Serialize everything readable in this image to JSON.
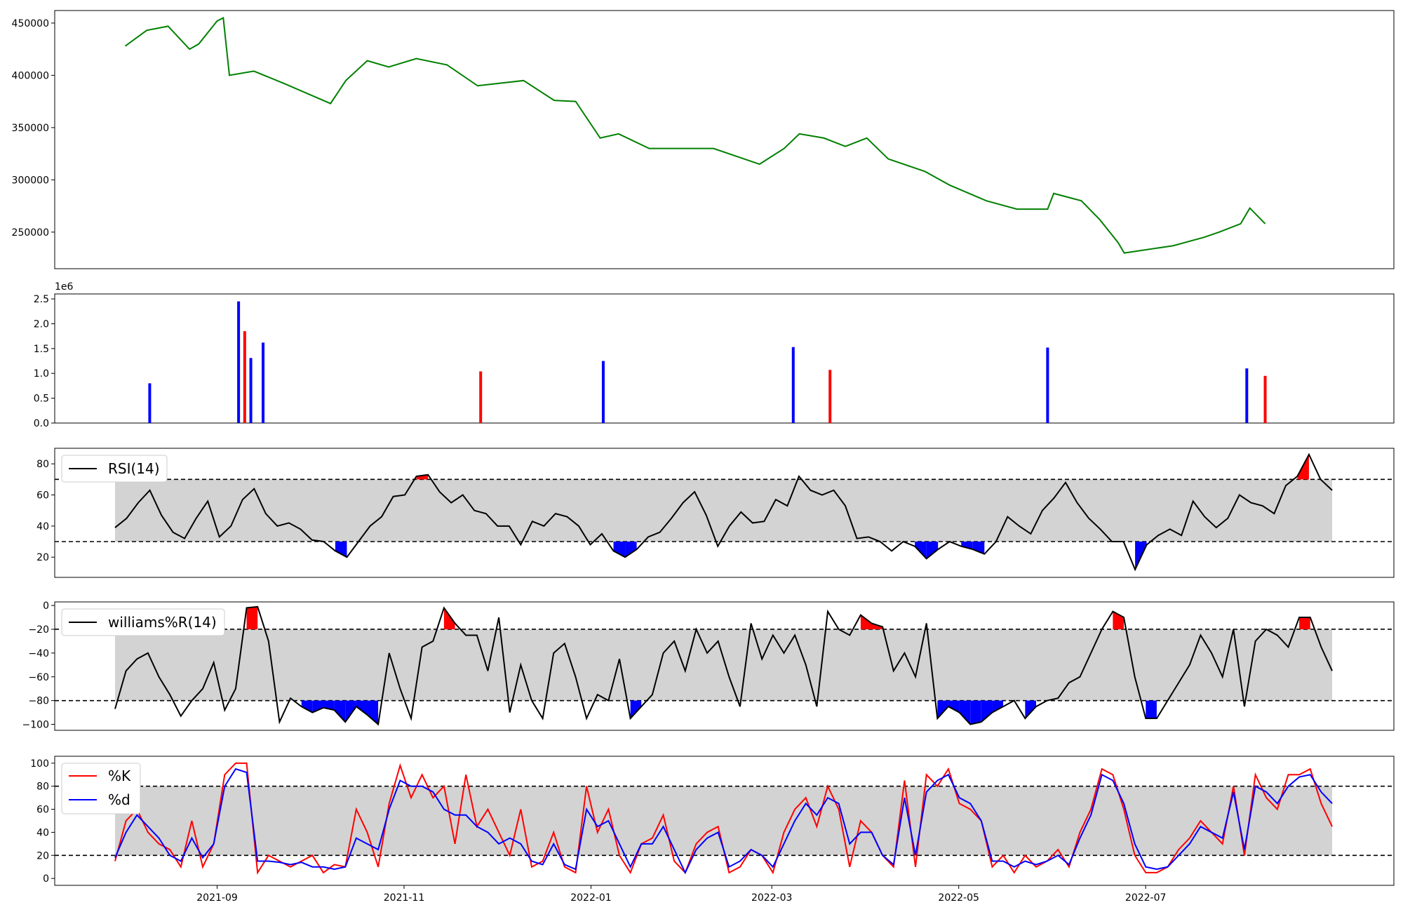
{
  "figure": {
    "x_ticks": [
      "2021-09",
      "2021-11",
      "2022-01",
      "2022-03",
      "2022-05",
      "2022-07"
    ]
  },
  "chart_data": [
    {
      "type": "line",
      "panel": "price",
      "color": "#008000",
      "ylim": [
        215000,
        462000
      ],
      "y_ticks": [
        "250000",
        "300000",
        "350000",
        "400000",
        "450000"
      ],
      "x": [
        "2021-08-02",
        "2021-08-09",
        "2021-08-16",
        "2021-08-23",
        "2021-08-26",
        "2021-09-01",
        "2021-09-03",
        "2021-09-05",
        "2021-09-13",
        "2021-09-23",
        "2021-10-08",
        "2021-10-13",
        "2021-10-20",
        "2021-10-27",
        "2021-11-05",
        "2021-11-15",
        "2021-11-25",
        "2021-12-10",
        "2021-12-20",
        "2021-12-27",
        "2022-01-04",
        "2022-01-10",
        "2022-01-20",
        "2022-02-10",
        "2022-02-25",
        "2022-03-05",
        "2022-03-10",
        "2022-03-18",
        "2022-03-25",
        "2022-04-01",
        "2022-04-08",
        "2022-04-20",
        "2022-04-28",
        "2022-05-10",
        "2022-05-20",
        "2022-05-30",
        "2022-06-01",
        "2022-06-10",
        "2022-06-16",
        "2022-06-22",
        "2022-06-24",
        "2022-07-10",
        "2022-07-20",
        "2022-07-25",
        "2022-08-01",
        "2022-08-04",
        "2022-08-09"
      ],
      "values": [
        428000,
        443000,
        447000,
        425000,
        430000,
        452000,
        455000,
        400000,
        404000,
        392000,
        373000,
        395000,
        414000,
        408000,
        416000,
        410000,
        390000,
        395000,
        376000,
        375000,
        340000,
        344000,
        330000,
        330000,
        315000,
        330000,
        344000,
        340000,
        332000,
        340000,
        320000,
        308000,
        295000,
        280000,
        272000,
        272000,
        287000,
        280000,
        262000,
        240000,
        230000,
        237000,
        245000,
        250000,
        258000,
        273000,
        258000
      ]
    },
    {
      "type": "bar",
      "panel": "volume",
      "ylim": [
        0,
        2.6
      ],
      "scale_label": "1e6",
      "y_ticks": [
        "0.0",
        "0.5",
        "1.0",
        "1.5",
        "2.0",
        "2.5"
      ],
      "series": [
        {
          "x": "2021-08-10",
          "value": 0.8
        },
        {
          "x": "2021-09-08",
          "value": 2.45
        },
        {
          "x": "2021-09-10",
          "value": 1.85
        },
        {
          "x": "2021-09-12",
          "value": 1.31
        },
        {
          "x": "2021-09-16",
          "value": 1.62
        },
        {
          "x": "2021-11-26",
          "value": 1.04
        },
        {
          "x": "2022-01-05",
          "value": 1.25
        },
        {
          "x": "2022-03-08",
          "value": 1.53
        },
        {
          "x": "2022-03-20",
          "value": 1.07
        },
        {
          "x": "2022-05-30",
          "value": 1.52
        },
        {
          "x": "2022-08-03",
          "value": 1.1
        },
        {
          "x": "2022-08-09",
          "value": 0.95
        }
      ],
      "colors": {
        "up": "#0000ff",
        "down": "#ff0000",
        "flat": "#000000"
      }
    },
    {
      "type": "line",
      "panel": "rsi",
      "legend": [
        "RSI(14)"
      ],
      "ylim": [
        7,
        90
      ],
      "y_ticks": [
        "20",
        "40",
        "60",
        "80"
      ],
      "bands": [
        30,
        70
      ],
      "values": [
        39,
        45,
        55,
        63,
        47,
        36,
        32,
        45,
        56,
        33,
        40,
        57,
        64,
        48,
        40,
        42,
        38,
        31,
        30,
        24,
        20,
        30,
        40,
        46,
        59,
        60,
        72,
        73,
        62,
        55,
        60,
        50,
        48,
        40,
        40,
        28,
        43,
        40,
        48,
        46,
        40,
        28,
        35,
        24,
        20,
        25,
        33,
        36,
        45,
        55,
        62,
        47,
        27,
        40,
        49,
        42,
        43,
        57,
        53,
        72,
        63,
        60,
        63,
        53,
        32,
        33,
        30,
        24,
        30,
        27,
        19,
        25,
        30,
        27,
        25,
        22,
        30,
        46,
        40,
        35,
        50,
        58,
        68,
        55,
        45,
        38,
        30,
        30,
        12,
        28,
        34,
        38,
        34,
        56,
        46,
        39,
        45,
        60,
        55,
        53,
        48,
        66,
        72,
        86,
        70,
        63
      ],
      "colors": {
        "line": "#000000",
        "band": "#d3d3d3",
        "over": "#ff0000",
        "under": "#0000ff"
      }
    },
    {
      "type": "line",
      "panel": "williams",
      "legend": [
        "williams%R(14)"
      ],
      "ylim": [
        -105,
        3
      ],
      "y_ticks": [
        "0",
        "−20",
        "−40",
        "−60",
        "−80",
        "−100"
      ],
      "bands": [
        -80,
        -20
      ],
      "values": [
        -87,
        -55,
        -45,
        -40,
        -60,
        -75,
        -93,
        -80,
        -70,
        -48,
        -88,
        -70,
        -2,
        -1,
        -30,
        -98,
        -78,
        -85,
        -90,
        -86,
        -88,
        -98,
        -85,
        -92,
        -100,
        -40,
        -70,
        -95,
        -35,
        -30,
        -2,
        -15,
        -25,
        -25,
        -55,
        -10,
        -90,
        -50,
        -80,
        -95,
        -40,
        -32,
        -60,
        -95,
        -75,
        -80,
        -45,
        -95,
        -85,
        -75,
        -40,
        -30,
        -55,
        -20,
        -40,
        -30,
        -60,
        -85,
        -15,
        -45,
        -25,
        -40,
        -25,
        -50,
        -85,
        -5,
        -20,
        -25,
        -8,
        -15,
        -18,
        -55,
        -40,
        -60,
        -15,
        -95,
        -85,
        -90,
        -100,
        -98,
        -90,
        -85,
        -80,
        -95,
        -85,
        -80,
        -78,
        -65,
        -60,
        -40,
        -20,
        -5,
        -10,
        -60,
        -95,
        -95,
        -80,
        -65,
        -50,
        -25,
        -40,
        -60,
        -20,
        -85,
        -30,
        -20,
        -25,
        -35,
        -10,
        -10,
        -35,
        -55
      ],
      "colors": {
        "line": "#000000",
        "band": "#d3d3d3",
        "over": "#ff0000",
        "under": "#0000ff"
      }
    },
    {
      "type": "line",
      "panel": "stochastic",
      "legend": [
        "%K",
        "%d"
      ],
      "ylim": [
        -6,
        106
      ],
      "y_ticks": [
        "0",
        "20",
        "40",
        "60",
        "80",
        "100"
      ],
      "bands": [
        20,
        80
      ],
      "series": [
        {
          "name": "%K",
          "color": "#ff0000",
          "values": [
            15,
            50,
            60,
            40,
            30,
            25,
            10,
            50,
            10,
            30,
            90,
            100,
            100,
            5,
            20,
            15,
            10,
            15,
            20,
            5,
            12,
            10,
            60,
            40,
            10,
            65,
            98,
            70,
            90,
            70,
            80,
            30,
            90,
            45,
            60,
            40,
            20,
            60,
            10,
            15,
            40,
            10,
            5,
            80,
            40,
            60,
            20,
            5,
            30,
            35,
            55,
            15,
            5,
            30,
            40,
            45,
            5,
            10,
            25,
            20,
            5,
            40,
            60,
            70,
            45,
            80,
            60,
            10,
            50,
            40,
            20,
            10,
            85,
            10,
            90,
            80,
            95,
            65,
            60,
            50,
            10,
            20,
            5,
            20,
            10,
            15,
            25,
            10,
            40,
            60,
            95,
            90,
            60,
            20,
            5,
            5,
            10,
            25,
            35,
            50,
            40,
            30,
            80,
            20,
            90,
            70,
            60,
            90,
            90,
            95,
            65,
            45
          ]
        },
        {
          "name": "%d",
          "color": "#0000ff",
          "values": [
            18,
            40,
            55,
            45,
            35,
            20,
            15,
            35,
            18,
            30,
            80,
            95,
            92,
            15,
            15,
            14,
            12,
            14,
            10,
            10,
            8,
            10,
            35,
            30,
            25,
            60,
            85,
            80,
            80,
            75,
            60,
            55,
            55,
            45,
            40,
            30,
            35,
            30,
            15,
            12,
            30,
            12,
            8,
            60,
            45,
            50,
            30,
            10,
            30,
            30,
            45,
            25,
            5,
            25,
            35,
            40,
            10,
            15,
            25,
            20,
            10,
            30,
            50,
            65,
            55,
            70,
            65,
            30,
            40,
            40,
            20,
            12,
            70,
            20,
            75,
            85,
            90,
            70,
            65,
            50,
            15,
            15,
            10,
            15,
            12,
            15,
            20,
            12,
            35,
            55,
            90,
            85,
            65,
            30,
            10,
            8,
            10,
            20,
            30,
            45,
            40,
            35,
            75,
            25,
            80,
            75,
            65,
            80,
            88,
            90,
            75,
            65
          ]
        }
      ],
      "colors": {
        "band": "#d3d3d3"
      }
    }
  ]
}
